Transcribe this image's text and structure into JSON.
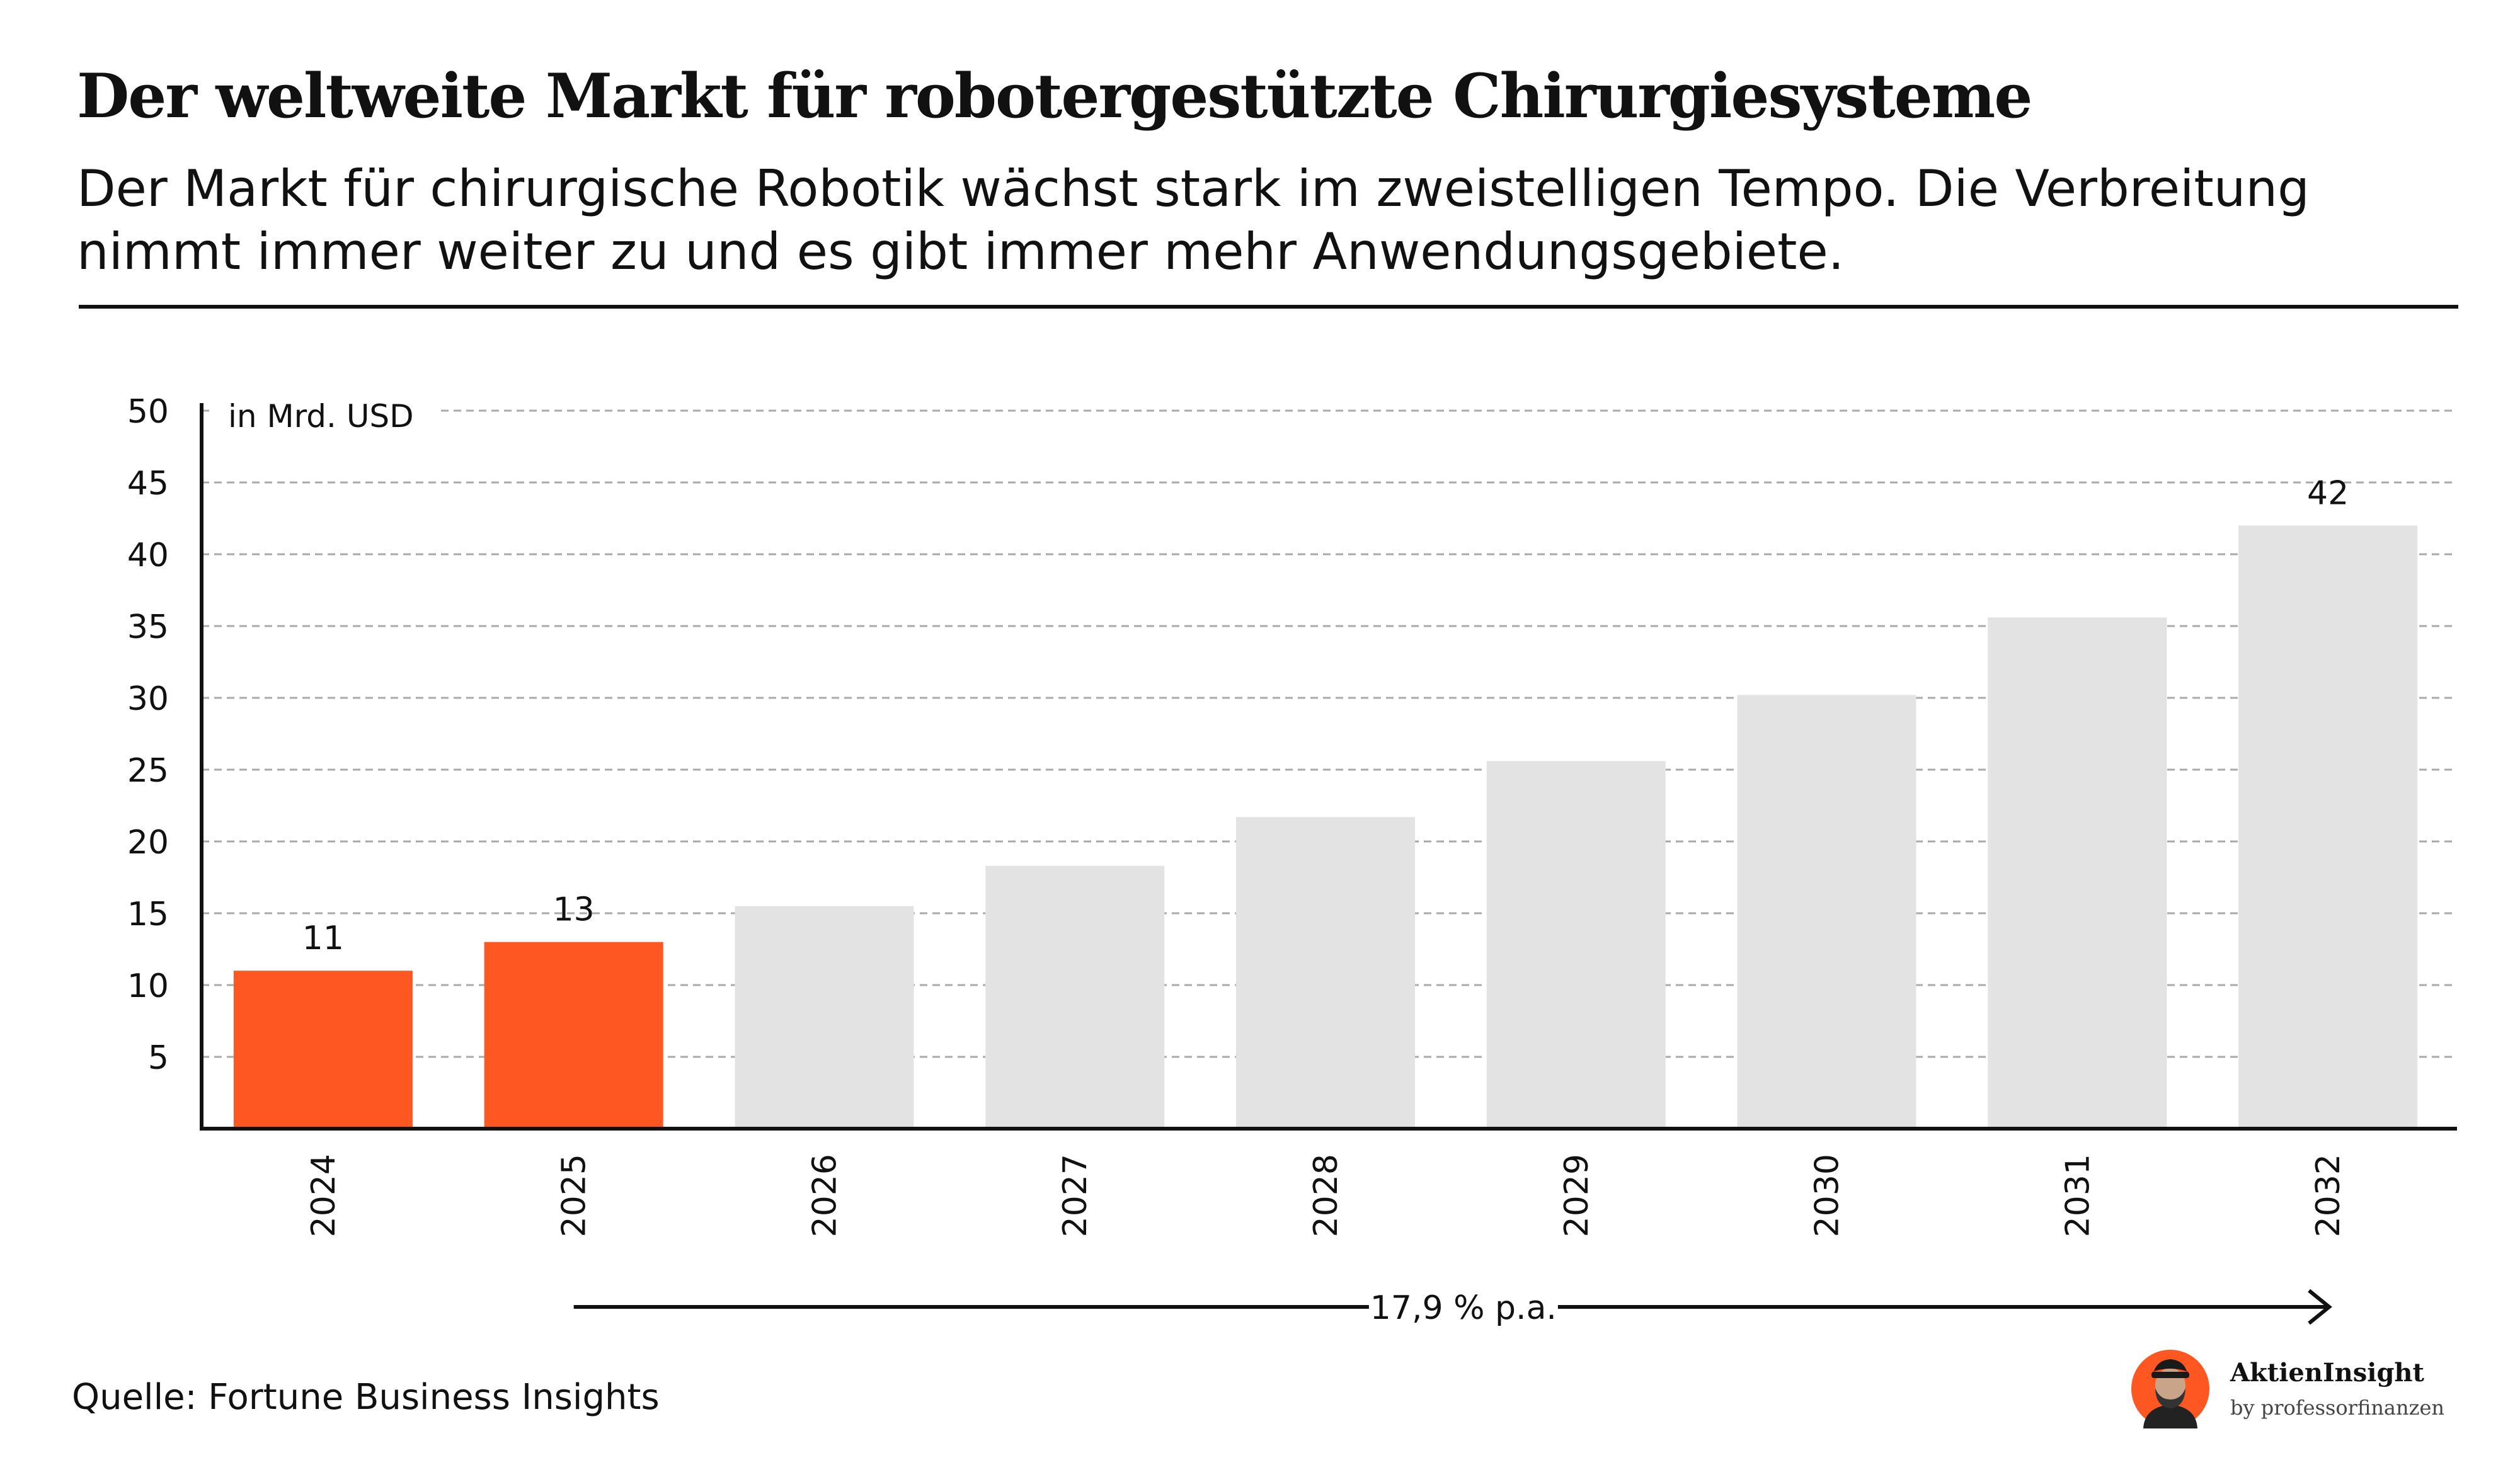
{
  "title": "Der weltweite Markt für robotergestützte Chirurgiesysteme",
  "subtitle": "Der Markt für chirurgische Robotik wächst stark im zweistelligen Tempo. Die Verbreitung nimmt immer weiter zu und es gibt immer mehr Anwendungsgebiete.",
  "chart_data": {
    "type": "bar",
    "title": "Der weltweite Markt für robotergestützte Chirurgiesysteme",
    "ylabel": "in Mrd. USD",
    "xlabel": "",
    "ylim": [
      0,
      50
    ],
    "yticks": [
      5,
      10,
      15,
      20,
      25,
      30,
      35,
      40,
      45,
      50
    ],
    "grid": true,
    "categories": [
      "2024",
      "2025",
      "2026",
      "2027",
      "2028",
      "2029",
      "2030",
      "2031",
      "2032"
    ],
    "values": [
      11,
      13,
      15.5,
      18.3,
      21.7,
      25.6,
      30.2,
      35.6,
      42
    ],
    "highlighted": [
      "2024",
      "2025"
    ],
    "data_labels": {
      "2024": "11",
      "2025": "13",
      "2032": "42"
    },
    "annotation": {
      "text": "17,9 % p.a.",
      "from": "2025",
      "to": "2032"
    },
    "colors": {
      "highlight": "#ff5722",
      "forecast": "#e3e3e3",
      "axis": "#111111",
      "grid": "#aaaaaa"
    }
  },
  "source": "Quelle: Fortune Business Insights",
  "brand": {
    "name": "AktienInsight",
    "tagline": "by professorfinanzen",
    "accent": "#ff5722"
  }
}
